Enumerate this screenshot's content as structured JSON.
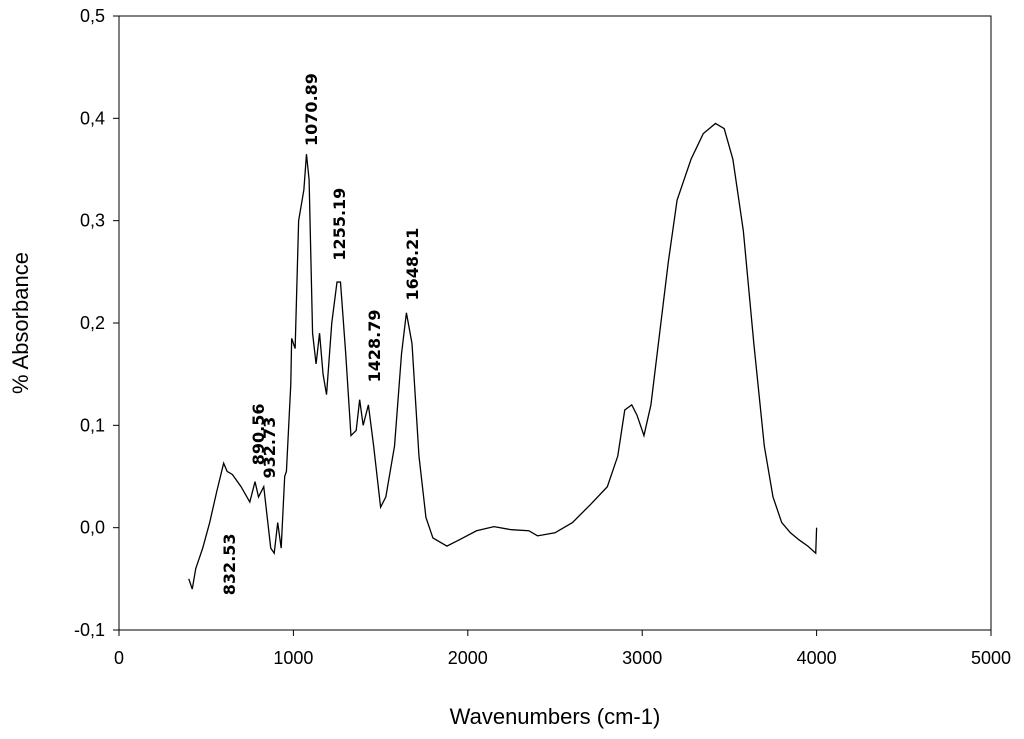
{
  "chart_data": {
    "type": "line",
    "xlabel": "Wavenumbers (cm-1)",
    "ylabel": "% Absorbance",
    "xlim": [
      0,
      5000
    ],
    "xticks": [
      0,
      1000,
      2000,
      3000,
      4000,
      5000
    ],
    "ylim": [
      -0.1,
      0.5
    ],
    "yticks": [
      {
        "value": -0.1,
        "label": "-0,1"
      },
      {
        "value": 0,
        "label": "0,0"
      },
      {
        "value": 0.1,
        "label": "0,1"
      },
      {
        "value": 0.2,
        "label": "0,2"
      },
      {
        "value": 0.3,
        "label": "0,3"
      },
      {
        "value": 0.4,
        "label": "0,4"
      },
      {
        "value": 0.5,
        "label": "0,5"
      }
    ],
    "series": [
      {
        "color": "#000000",
        "x": [
          400,
          420,
          440,
          480,
          520,
          560,
          600,
          620,
          650,
          700,
          750,
          780,
          800,
          830,
          850,
          870,
          890,
          910,
          930,
          950,
          960,
          985,
          990,
          1010,
          1030,
          1050,
          1060,
          1075,
          1090,
          1110,
          1130,
          1150,
          1170,
          1190,
          1220,
          1250,
          1270,
          1300,
          1330,
          1360,
          1380,
          1400,
          1430,
          1460,
          1500,
          1530,
          1580,
          1620,
          1648,
          1680,
          1720,
          1760,
          1800,
          1880,
          1950,
          2050,
          2150,
          2250,
          2350,
          2400,
          2500,
          2600,
          2700,
          2800,
          2860,
          2900,
          2940,
          2970,
          3010,
          3050,
          3100,
          3150,
          3200,
          3280,
          3350,
          3420,
          3470,
          3520,
          3580,
          3640,
          3700,
          3750,
          3800,
          3850,
          3900,
          3950,
          3995,
          4000
        ],
        "values": [
          -0.05,
          -0.06,
          -0.04,
          -0.02,
          0.005,
          0.035,
          0.063,
          0.055,
          0.052,
          0.04,
          0.025,
          0.045,
          0.03,
          0.04,
          0.01,
          -0.02,
          -0.025,
          0.005,
          -0.02,
          0.05,
          0.055,
          0.14,
          0.185,
          0.175,
          0.3,
          0.32,
          0.33,
          0.365,
          0.34,
          0.19,
          0.16,
          0.19,
          0.15,
          0.13,
          0.2,
          0.24,
          0.24,
          0.17,
          0.09,
          0.095,
          0.125,
          0.1,
          0.12,
          0.08,
          0.02,
          0.03,
          0.08,
          0.17,
          0.21,
          0.18,
          0.07,
          0.01,
          -0.01,
          -0.018,
          -0.012,
          -0.003,
          0.001,
          -0.002,
          -0.003,
          -0.008,
          -0.005,
          0.005,
          0.022,
          0.04,
          0.07,
          0.115,
          0.12,
          0.11,
          0.09,
          0.12,
          0.19,
          0.26,
          0.32,
          0.36,
          0.385,
          0.395,
          0.39,
          0.36,
          0.29,
          0.18,
          0.08,
          0.03,
          0.005,
          -0.005,
          -0.012,
          -0.018,
          -0.025,
          0.0
        ]
      }
    ],
    "annotations": [
      {
        "text": "1070.89",
        "x": 1101,
        "y": 0.373
      },
      {
        "text": "1255.19",
        "x": 1261,
        "y": 0.261
      },
      {
        "text": "1648.21",
        "x": 1680,
        "y": 0.222
      },
      {
        "text": "1428.79",
        "x": 1462,
        "y": 0.142
      },
      {
        "text": "932.73",
        "x": 860,
        "y": 0.048
      },
      {
        "text": "890.56",
        "x": 797,
        "y": 0.061
      },
      {
        "text": "832.53",
        "x": 631,
        "y": -0.066
      }
    ]
  }
}
